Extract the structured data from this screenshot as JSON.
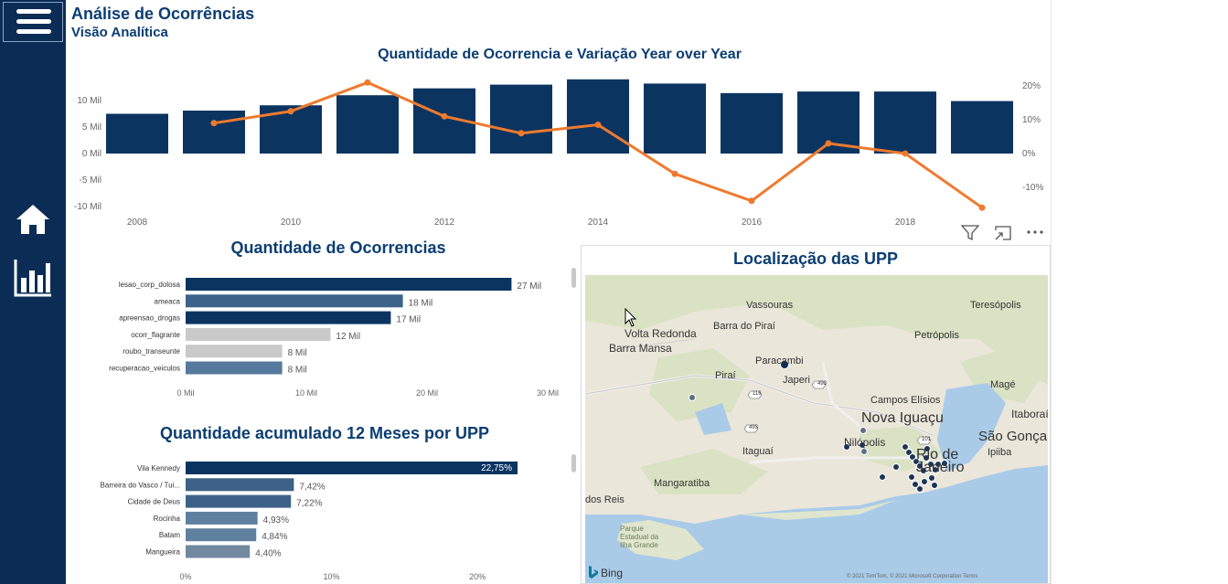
{
  "header": {
    "title": "Análise de Ocorrências",
    "subtitle": "Visão Analítica"
  },
  "top_chart": {
    "title": "Quantidade de Ocorrencia e Variação Year over Year",
    "left_ticks": [
      "10 Mil",
      "5 Mil",
      "0 Mil",
      "-5 Mil",
      "-10 Mil"
    ],
    "right_ticks": [
      "20%",
      "10%",
      "0%",
      "-10%"
    ],
    "x_ticks": [
      "2008",
      "2010",
      "2012",
      "2014",
      "2016",
      "2018"
    ]
  },
  "bar_chart_1": {
    "title": "Quantidade de Ocorrencias",
    "x_ticks": [
      "0 Mil",
      "10 Mil",
      "20 Mil",
      "30 Mil"
    ]
  },
  "bar_chart_2": {
    "title": "Quantidade acumulado 12 Meses por UPP",
    "x_ticks": [
      "0%",
      "10%",
      "20%"
    ]
  },
  "map": {
    "title": "Localização das UPP",
    "labels": [
      "Vassouras",
      "Teresópolis",
      "Volta Redonda",
      "Barra do Piraí",
      "Barra Mansa",
      "Petrópolis",
      "Paracambi",
      "Piraí",
      "Japeri",
      "Magé",
      "Campos Elísios",
      "Nova Iguaçu",
      "Itaboraí",
      "Nilópolis",
      "Rio de Janeiro",
      "São Gonçalo",
      "Ipiiba",
      "Itaguaí",
      "Mangaratiba",
      "dos Reis",
      "Parque Estadual da Ilha Grande",
      "493",
      "116",
      "493",
      "101"
    ],
    "attribution": "© 2021 TomTom, © 2021 Microsoft Corporation Terms",
    "bing": "Bing"
  },
  "chart_data": [
    {
      "type": "bar",
      "title": "Quantidade de Ocorrencia e Variação Year over Year",
      "categories": [
        "2008",
        "2009",
        "2010",
        "2011",
        "2012",
        "2013",
        "2014",
        "2015",
        "2016",
        "2017",
        "2018",
        "2019"
      ],
      "series": [
        {
          "values": [
            7.5,
            8.1,
            9.1,
            11.0,
            12.3,
            13.0,
            14.0,
            13.2,
            11.4,
            11.7,
            11.7,
            9.9
          ]
        },
        {
          "type": "line",
          "axis": "right",
          "values": [
            null,
            9,
            12.5,
            21,
            11,
            6,
            8.5,
            -6,
            -14,
            3,
            0,
            -16
          ]
        }
      ],
      "ylim": [
        -10,
        14
      ],
      "y2lim": [
        -20,
        25
      ],
      "grid": false
    },
    {
      "type": "bar",
      "title": "Quantidade de Ocorrencias",
      "categories": [
        "lesao_corp_dolosa",
        "ameaca",
        "apreensao_drogas",
        "ocorr_flagrante",
        "roubo_transeunte",
        "recuperacao_veiculos"
      ],
      "values": [
        27,
        18,
        17,
        12,
        8,
        8
      ],
      "value_labels": [
        "27 Mil",
        "18 Mil",
        "17 Mil",
        "12 Mil",
        "8 Mil",
        "8 Mil"
      ],
      "colors": [
        "#0b3461",
        "#3d6389",
        "#0b3461",
        "#c9c9c9",
        "#c9c9c9",
        "#55799d"
      ],
      "xlim": [
        0,
        30
      ]
    },
    {
      "type": "bar",
      "title": "Quantidade acumulado 12 Meses por UPP",
      "categories": [
        "Vila Kennedy",
        "Barreira do Vasco / Tui...",
        "Cidade de Deus",
        "Rocinha",
        "Batam",
        "Mangueira"
      ],
      "values": [
        22.75,
        7.42,
        7.22,
        4.93,
        4.84,
        4.4
      ],
      "value_labels": [
        "22,75%",
        "7,42%",
        "7,22%",
        "4,93%",
        "4,84%",
        "4,40%"
      ],
      "colors": [
        "#0b3461",
        "#3e6188",
        "#3e6188",
        "#60809f",
        "#60809f",
        "#71889f"
      ],
      "xlim": [
        0,
        23
      ]
    }
  ]
}
